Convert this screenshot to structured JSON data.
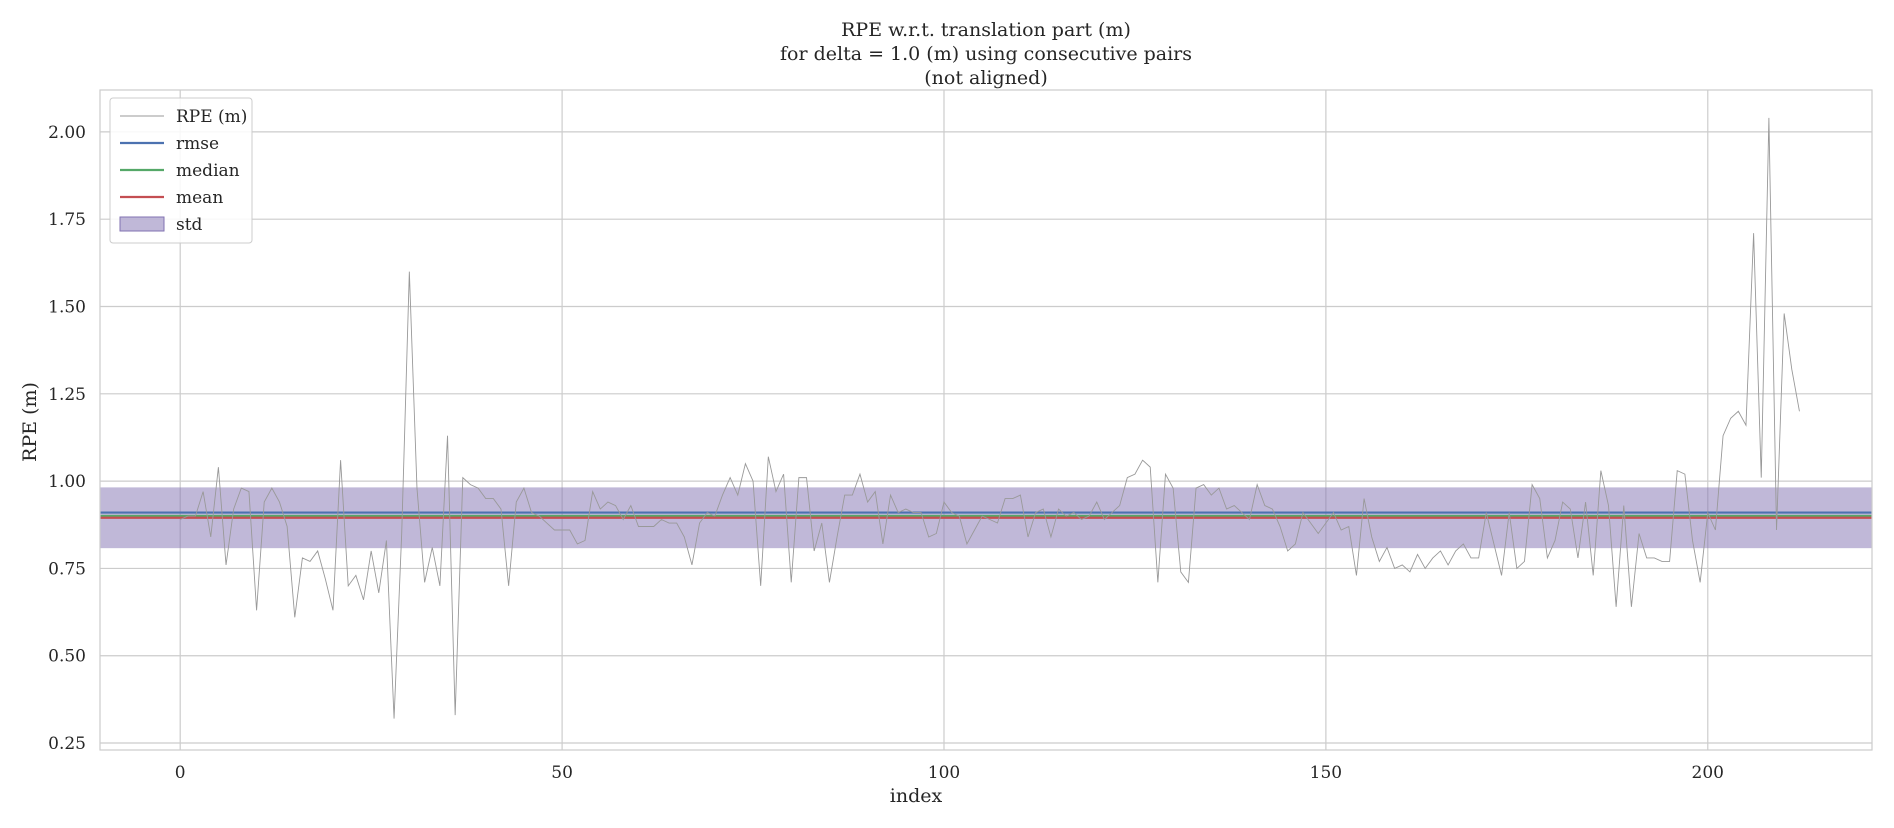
{
  "chart_data": {
    "type": "line",
    "title_lines": [
      "RPE w.r.t. translation part (m)",
      "for delta = 1.0 (m) using consecutive pairs",
      "(not aligned)"
    ],
    "xlabel": "index",
    "ylabel": "RPE (m)",
    "xlim": [
      -10.5,
      221.5
    ],
    "ylim": [
      0.23,
      2.12
    ],
    "xticks": [
      0,
      50,
      100,
      150,
      200
    ],
    "yticks": [
      0.25,
      0.5,
      0.75,
      1.0,
      1.25,
      1.5,
      1.75,
      2.0
    ],
    "ytick_labels": [
      "0.25",
      "0.50",
      "0.75",
      "1.00",
      "1.25",
      "1.50",
      "1.75",
      "2.00"
    ],
    "grid": true,
    "legend_position": "top-left",
    "legend": [
      {
        "key": "rpe",
        "label": "RPE (m)",
        "kind": "line"
      },
      {
        "key": "rmse",
        "label": "rmse",
        "kind": "line"
      },
      {
        "key": "median",
        "label": "median",
        "kind": "line"
      },
      {
        "key": "mean",
        "label": "mean",
        "kind": "line"
      },
      {
        "key": "std",
        "label": "std",
        "kind": "patch"
      }
    ],
    "colors": {
      "rpe": "#999999",
      "rmse": "#4c72b0",
      "median": "#55a868",
      "mean": "#c44e52",
      "std": "#8172b2"
    },
    "stats": {
      "rmse": 0.91,
      "median": 0.9,
      "mean": 0.895,
      "std": 0.087
    },
    "series": [
      {
        "name": "RPE (m)",
        "x_start": 0,
        "values": [
          0.89,
          0.9,
          0.9,
          0.97,
          0.84,
          1.04,
          0.76,
          0.92,
          0.98,
          0.97,
          0.63,
          0.94,
          0.98,
          0.94,
          0.87,
          0.61,
          0.78,
          0.77,
          0.8,
          0.72,
          0.63,
          1.06,
          0.7,
          0.73,
          0.66,
          0.8,
          0.68,
          0.83,
          0.32,
          0.85,
          1.6,
          0.98,
          0.71,
          0.81,
          0.7,
          1.13,
          0.33,
          1.01,
          0.99,
          0.98,
          0.95,
          0.95,
          0.92,
          0.7,
          0.94,
          0.98,
          0.91,
          0.9,
          0.88,
          0.86,
          0.86,
          0.86,
          0.82,
          0.83,
          0.97,
          0.92,
          0.94,
          0.93,
          0.89,
          0.93,
          0.87,
          0.87,
          0.87,
          0.89,
          0.88,
          0.88,
          0.84,
          0.76,
          0.88,
          0.91,
          0.9,
          0.96,
          1.01,
          0.96,
          1.05,
          1.0,
          0.7,
          1.07,
          0.97,
          1.02,
          0.71,
          1.01,
          1.01,
          0.8,
          0.88,
          0.71,
          0.84,
          0.96,
          0.96,
          1.02,
          0.94,
          0.97,
          0.82,
          0.96,
          0.91,
          0.92,
          0.91,
          0.91,
          0.84,
          0.85,
          0.94,
          0.91,
          0.9,
          0.82,
          0.86,
          0.9,
          0.89,
          0.88,
          0.95,
          0.95,
          0.96,
          0.84,
          0.91,
          0.92,
          0.84,
          0.92,
          0.9,
          0.91,
          0.89,
          0.9,
          0.94,
          0.89,
          0.91,
          0.93,
          1.01,
          1.02,
          1.06,
          1.04,
          0.71,
          1.02,
          0.98,
          0.74,
          0.71,
          0.98,
          0.99,
          0.96,
          0.98,
          0.92,
          0.93,
          0.91,
          0.89,
          0.99,
          0.93,
          0.92,
          0.87,
          0.8,
          0.82,
          0.91,
          0.88,
          0.85,
          0.88,
          0.91,
          0.86,
          0.87,
          0.73,
          0.95,
          0.84,
          0.77,
          0.81,
          0.75,
          0.76,
          0.74,
          0.79,
          0.75,
          0.78,
          0.8,
          0.76,
          0.8,
          0.82,
          0.78,
          0.78,
          0.91,
          0.82,
          0.73,
          0.91,
          0.75,
          0.77,
          0.99,
          0.95,
          0.78,
          0.83,
          0.94,
          0.92,
          0.78,
          0.94,
          0.73,
          1.03,
          0.93,
          0.64,
          0.93,
          0.64,
          0.85,
          0.78,
          0.78,
          0.77,
          0.77,
          1.03,
          1.02,
          0.83,
          0.71,
          0.91,
          0.86,
          1.13,
          1.18,
          1.2,
          1.16,
          1.71,
          1.01,
          2.04,
          0.86,
          1.48,
          1.32,
          1.2
        ]
      }
    ]
  }
}
